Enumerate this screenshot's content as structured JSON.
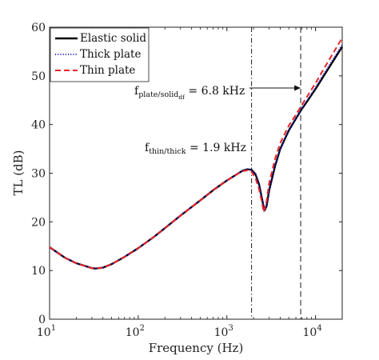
{
  "chart_data": {
    "type": "line",
    "xlabel": "Frequency (Hz)",
    "ylabel": "TL (dB)",
    "xscale": "log",
    "xlim": [
      10,
      20000
    ],
    "ylim": [
      0,
      60
    ],
    "grid": false,
    "legend_position": "top-left",
    "x_ticks": [
      {
        "value": 10,
        "base": "10",
        "exp": "1"
      },
      {
        "value": 100,
        "base": "10",
        "exp": "2"
      },
      {
        "value": 1000,
        "base": "10",
        "exp": "3"
      },
      {
        "value": 10000,
        "base": "10",
        "exp": "4"
      }
    ],
    "y_ticks": [
      0,
      10,
      20,
      30,
      40,
      50,
      60
    ],
    "series": [
      {
        "name": "Elastic solid",
        "color": "#000000",
        "style": "solid",
        "x": [
          10,
          15,
          20,
          30,
          33,
          40,
          50,
          70,
          100,
          150,
          200,
          300,
          500,
          700,
          1000,
          1300,
          1500,
          1700,
          1900,
          2100,
          2300,
          2500,
          2650,
          2800,
          3000,
          3500,
          4000,
          5000,
          6000,
          7000,
          8000,
          10000,
          12000,
          15000,
          20000
        ],
        "y": [
          14.8,
          12.6,
          11.5,
          10.5,
          10.4,
          10.6,
          11.3,
          12.8,
          14.6,
          16.9,
          18.7,
          21.3,
          24.4,
          26.5,
          28.5,
          29.8,
          30.5,
          30.8,
          30.7,
          29.8,
          27.8,
          24.6,
          22.3,
          23.2,
          26.5,
          31.5,
          35.0,
          38.8,
          41.2,
          43.2,
          44.7,
          47.3,
          49.6,
          52.4,
          56.0
        ]
      },
      {
        "name": "Thick plate",
        "color": "#1f1fcc",
        "style": "dotted",
        "x": [
          10,
          15,
          20,
          30,
          33,
          40,
          50,
          70,
          100,
          150,
          200,
          300,
          500,
          700,
          1000,
          1300,
          1500,
          1700,
          1900,
          2100,
          2300,
          2500,
          2650,
          2800,
          3000,
          3500,
          4000,
          5000,
          6000,
          7000,
          8000,
          10000,
          12000,
          15000,
          20000
        ],
        "y": [
          14.8,
          12.6,
          11.5,
          10.5,
          10.4,
          10.6,
          11.3,
          12.8,
          14.6,
          16.9,
          18.7,
          21.3,
          24.4,
          26.5,
          28.5,
          29.8,
          30.5,
          30.8,
          30.7,
          29.8,
          27.8,
          24.6,
          22.3,
          23.2,
          26.5,
          31.5,
          35.0,
          38.8,
          41.2,
          43.3,
          44.9,
          47.6,
          50.0,
          52.8,
          56.4
        ]
      },
      {
        "name": "Thin plate",
        "color": "#e8242a",
        "style": "dashed",
        "x": [
          10,
          15,
          20,
          30,
          33,
          40,
          50,
          70,
          100,
          150,
          200,
          300,
          500,
          700,
          1000,
          1300,
          1500,
          1700,
          1900,
          2100,
          2300,
          2500,
          2600,
          2800,
          3000,
          3500,
          4000,
          5000,
          6000,
          7000,
          8000,
          10000,
          12000,
          15000,
          20000
        ],
        "y": [
          14.8,
          12.6,
          11.5,
          10.5,
          10.4,
          10.6,
          11.3,
          12.8,
          14.6,
          16.9,
          18.7,
          21.3,
          24.4,
          26.5,
          28.5,
          29.8,
          30.4,
          30.6,
          30.3,
          29.0,
          26.8,
          23.8,
          22.0,
          24.2,
          28.0,
          33.0,
          36.2,
          39.8,
          42.0,
          44.0,
          45.7,
          48.5,
          51.0,
          54.0,
          57.8
        ]
      }
    ],
    "vlines": [
      {
        "x": 1900,
        "style": "dashdot",
        "color": "#000000"
      },
      {
        "x": 6800,
        "style": "dashed",
        "color": "#000000"
      }
    ],
    "annotations": {
      "plate_solid": {
        "main": "f",
        "sub": "plate/solid",
        "sub2": "df",
        "value": " = 6.8 kHz",
        "arrow_to_x": 6800,
        "arrow_y": 47.5
      },
      "thin_thick": {
        "main": "f",
        "sub": "thin/thick",
        "value": " = 1.9 kHz"
      }
    }
  }
}
